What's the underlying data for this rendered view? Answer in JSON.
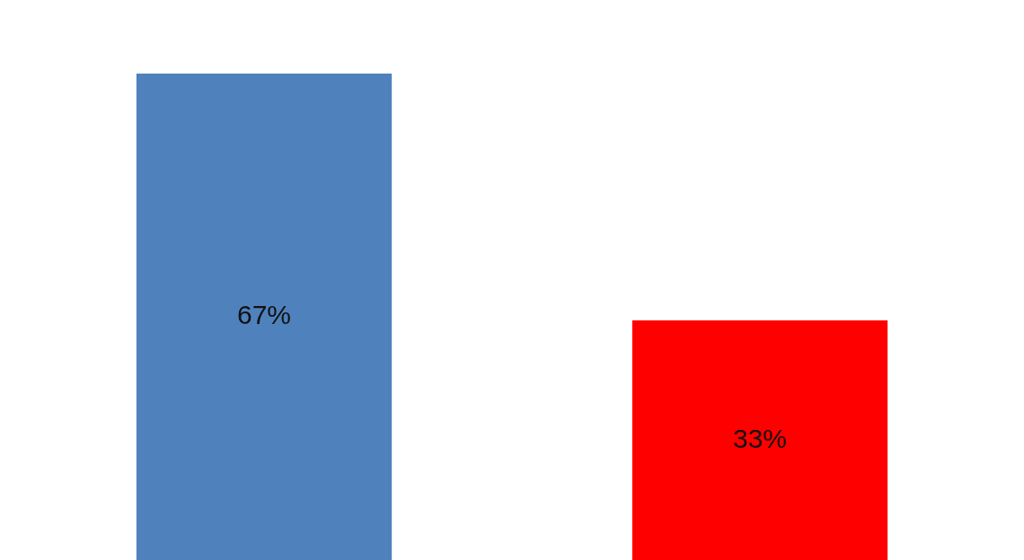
{
  "chart_data": {
    "type": "bar",
    "categories": [
      null,
      null
    ],
    "values": [
      67,
      33
    ],
    "colors": [
      "#4f81bd",
      "#ff0000"
    ],
    "value_labels": [
      "67%",
      "33%"
    ],
    "tick_labels": false
  }
}
